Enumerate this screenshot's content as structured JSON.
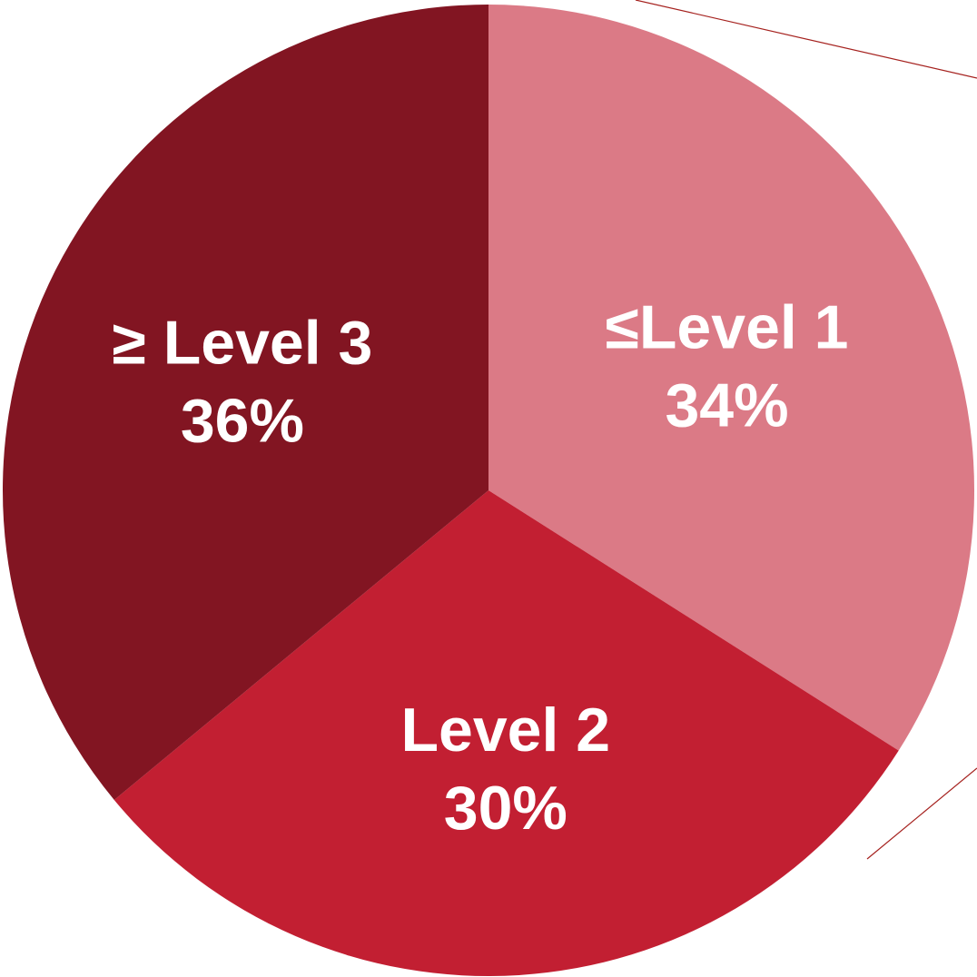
{
  "chart_data": {
    "type": "pie",
    "slices": [
      {
        "label": "≤Level 1",
        "value": 34,
        "value_label": "34%",
        "color": "#DB7A86"
      },
      {
        "label": "Level 2",
        "value": 30,
        "value_label": "30%",
        "color": "#C21F32"
      },
      {
        "label": "≥ Level 3",
        "value": 36,
        "value_label": "36%",
        "color": "#821522"
      }
    ],
    "start_angle_deg": 0,
    "direction": "clockwise",
    "label_color": "#FFFFFF",
    "leader_line_color": "#A5211E"
  }
}
